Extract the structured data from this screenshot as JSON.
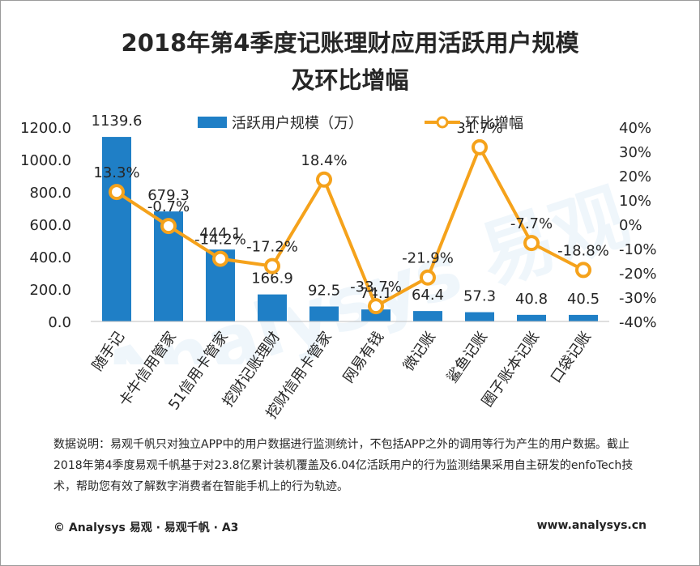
{
  "title_line1": "2018年第4季度记账理财应用活跃用户规模",
  "title_line2": "及环比增幅",
  "note": "数据说明：易观千帆只对独立APP中的用户数据进行监测统计，不包括APP之外的调用等行为产生的用户数据。截止2018年第4季度易观千帆基于对23.8亿累计装机覆盖及6.04亿活跃用户的行为监测结果采用自主研发的enfoTech技术，帮助您有效了解数字消费者在智能手机上的行为轨迹。",
  "footer_left": "© Analysys 易观 · 易观千帆 · A3",
  "footer_right": "www.analysys.cn",
  "colors": {
    "bar": "#1f7fc6",
    "line": "#f5a21b",
    "marker_fill": "#ffffff"
  },
  "chart_data": {
    "type": "bar+line",
    "categories": [
      "随手记",
      "卡牛信用管家",
      "51信用卡管家",
      "挖财记账理财",
      "挖财信用卡管家",
      "网易有钱",
      "微记账",
      "鲨鱼记账",
      "圈子账本记账",
      "口袋记账"
    ],
    "series": [
      {
        "name": "活跃用户规模（万）",
        "type": "bar",
        "axis": "left",
        "values": [
          1139.6,
          679.3,
          444.1,
          166.9,
          92.5,
          74.1,
          64.4,
          57.3,
          40.8,
          40.5
        ],
        "labels": [
          "1139.6",
          "679.3",
          "444.1",
          "166.9",
          "92.5",
          "74.1",
          "64.4",
          "57.3",
          "40.8",
          "40.5"
        ]
      },
      {
        "name": "环比增幅",
        "type": "line",
        "axis": "right",
        "values": [
          13.3,
          -0.7,
          -14.2,
          -17.2,
          18.4,
          -33.7,
          -21.9,
          31.7,
          -7.7,
          -18.8
        ],
        "labels": [
          "13.3%",
          "-0.7%",
          "-14.2%",
          "-17.2%",
          "18.4%",
          "-33.7%",
          "-21.9%",
          "31.7%",
          "-7.7%",
          "-18.8%"
        ]
      }
    ],
    "y_left": {
      "min": 0,
      "max": 1200,
      "ticks": [
        "0.0",
        "200.0",
        "400.0",
        "600.0",
        "800.0",
        "1000.0",
        "1200.0"
      ]
    },
    "y_right": {
      "min": -40,
      "max": 40,
      "ticks": [
        "-40%",
        "-30%",
        "-20%",
        "-10%",
        "0%",
        "10%",
        "20%",
        "30%",
        "40%"
      ]
    },
    "legend_position": "top-center",
    "grid": false
  }
}
